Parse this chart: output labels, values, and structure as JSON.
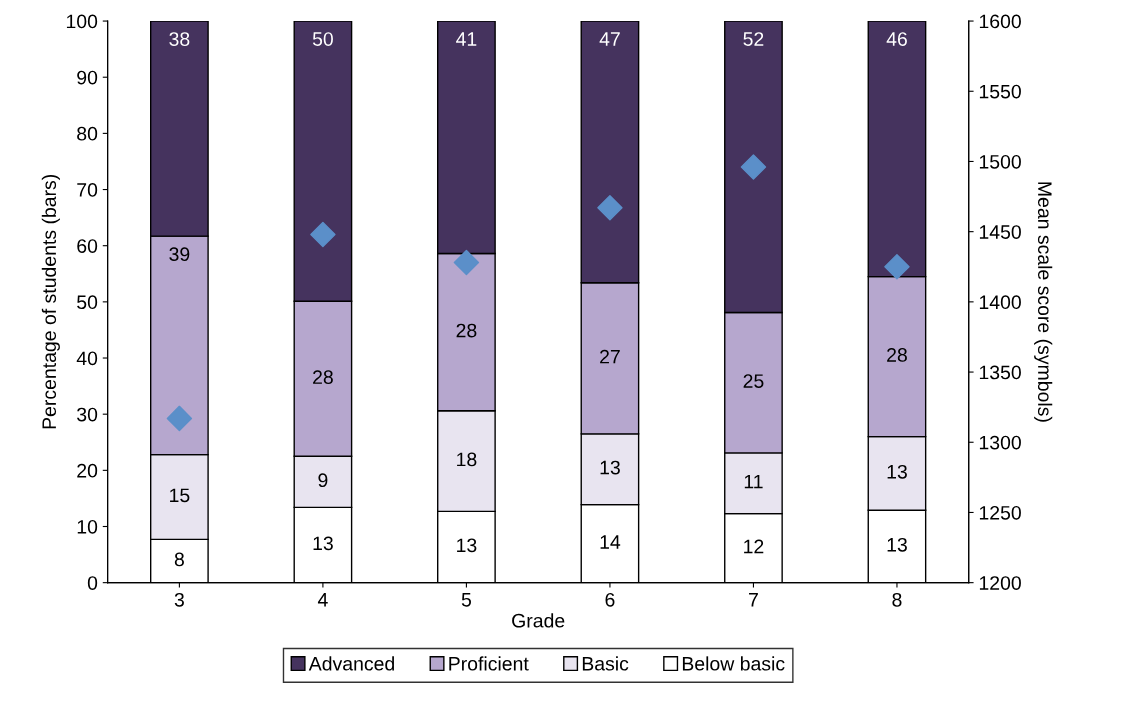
{
  "chart_data": {
    "type": "bar",
    "stacked": true,
    "xlabel": "Grade",
    "ylabel": "Percentage of students (bars)",
    "y2label": "Mean scale score (symbols)",
    "categories": [
      "3",
      "4",
      "5",
      "6",
      "7",
      "8"
    ],
    "series": [
      {
        "name": "Below basic",
        "color": "#ffffff",
        "values": [
          7.7,
          13.4,
          12.7,
          13.9,
          12.3,
          12.9
        ],
        "value_labels": [
          "8",
          "13",
          "13",
          "14",
          "12",
          "13"
        ]
      },
      {
        "name": "Basic",
        "color": "#e8e4f0",
        "values": [
          15.1,
          9.1,
          17.9,
          12.6,
          10.8,
          13.1
        ],
        "value_labels": [
          "15",
          "9",
          "18",
          "13",
          "11",
          "13"
        ]
      },
      {
        "name": "Proficient",
        "color": "#b6a7ce",
        "values": [
          38.9,
          27.6,
          28.0,
          26.9,
          25.0,
          28.5
        ],
        "value_labels": [
          "39",
          "28",
          "28",
          "27",
          "25",
          "28"
        ]
      },
      {
        "name": "Advanced",
        "color": "#45335e",
        "values": [
          38.3,
          49.9,
          41.4,
          46.6,
          51.9,
          45.5
        ],
        "value_labels": [
          "38",
          "50",
          "41",
          "47",
          "52",
          "46"
        ]
      },
      {
        "type": "scatter",
        "axis": "y2",
        "marker": "diamond",
        "color": "#5b8fc9",
        "values": [
          1317,
          1448,
          1428,
          1467,
          1496,
          1425
        ]
      }
    ],
    "ylim": [
      0,
      100
    ],
    "yticks": [
      0,
      10,
      20,
      30,
      40,
      50,
      60,
      70,
      80,
      90,
      100
    ],
    "y2lim": [
      1200,
      1600
    ],
    "y2ticks": [
      1200,
      1250,
      1300,
      1350,
      1400,
      1450,
      1500,
      1550,
      1600
    ],
    "grid": false,
    "legend": "bottom"
  }
}
